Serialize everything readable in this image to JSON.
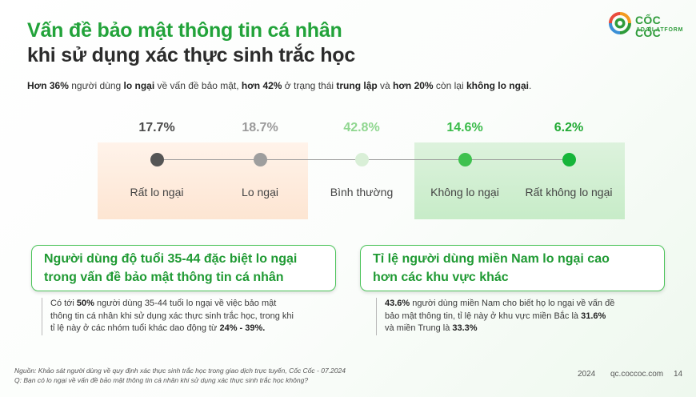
{
  "title": {
    "line1": "Vấn đề bảo mật thông tin cá nhân",
    "line2": "khi sử dụng xác thực sinh trắc học"
  },
  "logo": {
    "name": "CỐC CỐC",
    "subtitle": "AD PLATFORM",
    "colors": {
      "green": "#2e9b3a",
      "orange": "#f39a1f",
      "red": "#e94b3c",
      "blue": "#3b8fd6"
    }
  },
  "summary": {
    "p1": "Hơn 36%",
    "p2": " người dùng ",
    "p3": "lo ngại",
    "p4": " về vấn đề bảo mật, ",
    "p5": "hơn 42%",
    "p6": " ở trạng thái ",
    "p7": "trung lập",
    "p8": " và ",
    "p9": "hơn 20%",
    "p10": " còn lại ",
    "p11": "không lo ngại",
    "p12": "."
  },
  "scale": {
    "items": [
      {
        "percent": "17.7%",
        "label": "Rất lo ngại",
        "value": 17.7,
        "percent_color": "#4a4a4a",
        "dot_color": "#555555"
      },
      {
        "percent": "18.7%",
        "label": "Lo ngại",
        "value": 18.7,
        "percent_color": "#9a9a9a",
        "dot_color": "#9e9e9e"
      },
      {
        "percent": "42.8%",
        "label": "Bình thường",
        "value": 42.8,
        "percent_color": "#8fd68f",
        "dot_color": "#d9efd7"
      },
      {
        "percent": "14.6%",
        "label": "Không lo ngại",
        "value": 14.6,
        "percent_color": "#39bb49",
        "dot_color": "#3fc14f"
      },
      {
        "percent": "6.2%",
        "label": "Rất không lo ngại",
        "value": 6.2,
        "percent_color": "#22aa35",
        "dot_color": "#16b53a"
      }
    ]
  },
  "card_left": {
    "title_line1": "Người dùng độ tuổi 35-44 đặc biệt lo ngại",
    "title_line2": "trong vấn đề bảo mật thông tin cá nhân",
    "detail": {
      "a": "Có tới ",
      "b": "50%",
      "c": " người dùng 35-44 tuổi lo ngại về việc bảo mật",
      "d": "thông tin cá nhân khi sử dụng xác thực sinh trắc học, trong khi",
      "e": "tỉ lệ này ở các nhóm tuổi khác dao động từ ",
      "f": "24% - 39%."
    }
  },
  "card_right": {
    "title_line1": "Tỉ lệ người dùng miền Nam lo ngại cao",
    "title_line2": "hơn các khu vực khác",
    "detail": {
      "a": "43.6%",
      "b": " người dùng miền Nam cho biết họ lo ngại về vấn đề",
      "c": "bảo mật thông tin, tỉ lệ này ở khu vực miền Bắc  là ",
      "d": "31.6%",
      "e": "và miền Trung là ",
      "f": "33.3%"
    }
  },
  "footer": {
    "source_line1": "Nguồn: Khảo sát người dùng về quy định xác thực sinh trắc học trong giao dịch trực tuyến, Cốc Cốc - 07.2024",
    "source_line2": "Q: Bạn có lo ngại về vấn đề bảo mật thông tin cá nhân khi sử dụng xác thực sinh trắc học không?",
    "year": "2024",
    "site": "qc.coccoc.com",
    "page": "14"
  }
}
